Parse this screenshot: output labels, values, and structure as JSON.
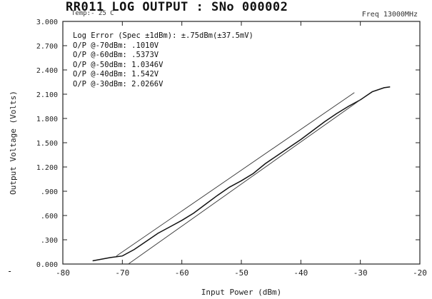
{
  "header": {
    "title": "RR011 LOG OUTPUT : SNo 000002",
    "temp": "Temp:- 25 C",
    "freq": "Freq 13000MHz"
  },
  "annotations": [
    "Log Error (Spec ±1dBm): ±.75dBm(±37.5mV)",
    "O/P @-70dBm: .1010V",
    "O/P @-60dBm: .5373V",
    "O/P @-50dBm: 1.0346V",
    "O/P @-40dBm: 1.542V",
    "O/P @-30dBm: 2.0266V"
  ],
  "left_mark": "-",
  "chart_data": {
    "type": "line",
    "xlabel": "Input Power (dBm)",
    "ylabel": "Output Voltage (Volts)",
    "xlim": [
      -80,
      -20
    ],
    "ylim": [
      0,
      3.0
    ],
    "x_ticks": [
      "-80",
      "-70",
      "-60",
      "-50",
      "-40",
      "-30",
      "-20"
    ],
    "y_ticks": [
      "0.000",
      ".300",
      ".600",
      ".900",
      "1.200",
      "1.500",
      "1.800",
      "2.100",
      "2.400",
      "2.700",
      "3.000"
    ],
    "x_tick_values": [
      -80,
      -70,
      -60,
      -50,
      -40,
      -30,
      -20
    ],
    "y_tick_values": [
      0,
      0.3,
      0.6,
      0.9,
      1.2,
      1.5,
      1.8,
      2.1,
      2.4,
      2.7,
      3.0
    ],
    "grid": false,
    "series": [
      {
        "x": [
          -75,
          -72,
          -70,
          -68,
          -66,
          -64,
          -62,
          -60,
          -58,
          -56,
          -54,
          -52,
          -50,
          -48,
          -46,
          -44,
          -42,
          -40,
          -38,
          -36,
          -34,
          -32,
          -30,
          -28,
          -26,
          -25
        ],
        "y": [
          0.04,
          0.08,
          0.1,
          0.18,
          0.28,
          0.38,
          0.46,
          0.54,
          0.63,
          0.74,
          0.85,
          0.95,
          1.03,
          1.12,
          1.24,
          1.34,
          1.44,
          1.54,
          1.65,
          1.76,
          1.86,
          1.95,
          2.03,
          2.13,
          2.18,
          2.19
        ]
      },
      {
        "x": [
          -69,
          -30
        ],
        "y": [
          0.0,
          2.03
        ]
      },
      {
        "x": [
          -71,
          -31
        ],
        "y": [
          0.1,
          2.12
        ]
      }
    ]
  }
}
